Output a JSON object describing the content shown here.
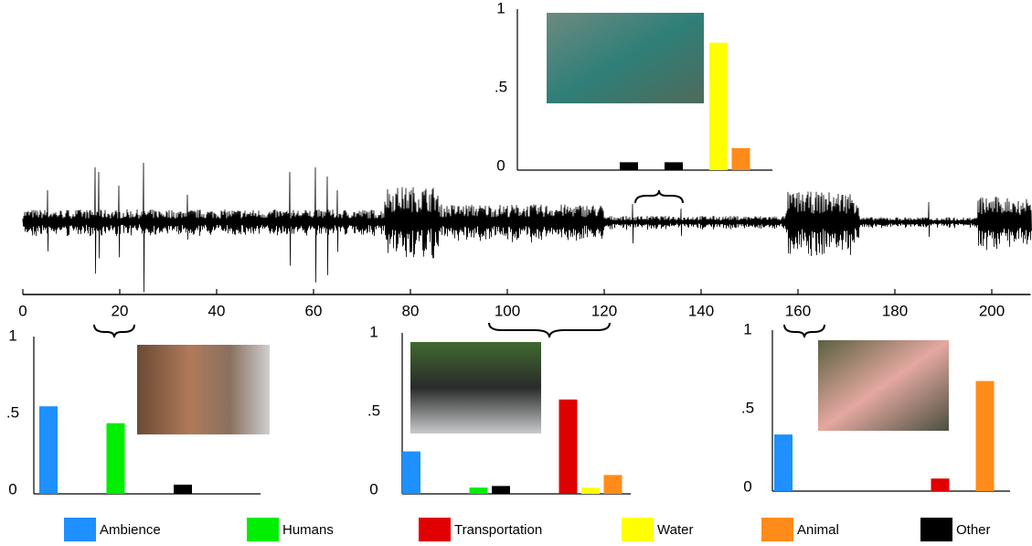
{
  "timeline": {
    "xlim": [
      0,
      208
    ],
    "xticks": [
      0,
      20,
      40,
      60,
      80,
      100,
      120,
      140,
      160,
      180,
      200
    ]
  },
  "chart_data": [
    {
      "type": "bar",
      "categories": [
        null,
        null,
        null,
        null,
        null,
        null,
        null,
        null,
        null,
        null
      ],
      "values": [
        null,
        null,
        null,
        null,
        0.05,
        null,
        0.05,
        null,
        0.81,
        0.14
      ],
      "colors": [
        null,
        null,
        null,
        null,
        "#000000",
        null,
        "#000000",
        null,
        "#ffff00",
        "#ff8c1a"
      ],
      "ylim": [
        0,
        1.05
      ],
      "yticks": [
        0,
        {
          "value": 0.5,
          "label": ".5"
        },
        1
      ]
    },
    {
      "type": "bar",
      "categories": [
        null,
        null,
        null,
        null,
        null,
        null,
        null,
        null,
        null,
        null
      ],
      "values": [
        0.57,
        null,
        null,
        0.46,
        null,
        null,
        0.06,
        null,
        null,
        null
      ],
      "colors": [
        "#1e90ff",
        null,
        null,
        "#00ee00",
        null,
        null,
        "#000000",
        null,
        null,
        null
      ],
      "ylim": [
        0,
        1.02
      ],
      "yticks": [
        0,
        {
          "value": 0.5,
          "label": ".5"
        },
        1
      ]
    },
    {
      "type": "bar",
      "categories": [
        null,
        null,
        null,
        null,
        null,
        null,
        null,
        null,
        null,
        null
      ],
      "values": [
        0.27,
        null,
        null,
        0.04,
        0.05,
        null,
        null,
        0.6,
        0.04,
        0.12
      ],
      "colors": [
        "#1e90ff",
        null,
        null,
        "#00ee00",
        "#000000",
        null,
        null,
        "#e00000",
        "#ffff00",
        "#ff8c1a"
      ],
      "ylim": [
        0,
        1.02
      ],
      "yticks": [
        0,
        {
          "value": 0.5,
          "label": ".5"
        },
        1
      ]
    },
    {
      "type": "bar",
      "categories": [
        null,
        null,
        null,
        null,
        null,
        null,
        null,
        null,
        null,
        null
      ],
      "values": [
        0.36,
        null,
        null,
        null,
        null,
        null,
        null,
        0.08,
        null,
        0.7
      ],
      "colors": [
        "#1e90ff",
        null,
        null,
        null,
        null,
        null,
        null,
        "#e00000",
        null,
        "#ff8c1a"
      ],
      "ylim": [
        0,
        1.02
      ],
      "yticks": [
        0,
        {
          "value": 0.5,
          "label": ".5"
        },
        1
      ]
    }
  ],
  "legend": [
    {
      "name": "Ambience",
      "color": "#1e90ff"
    },
    {
      "name": "Humans",
      "color": "#00ee00"
    },
    {
      "name": "Transportation",
      "color": "#e00000"
    },
    {
      "name": "Water",
      "color": "#ffff00"
    },
    {
      "name": "Animal",
      "color": "#ff8c1a"
    },
    {
      "name": "Other",
      "color": "#000000"
    }
  ]
}
